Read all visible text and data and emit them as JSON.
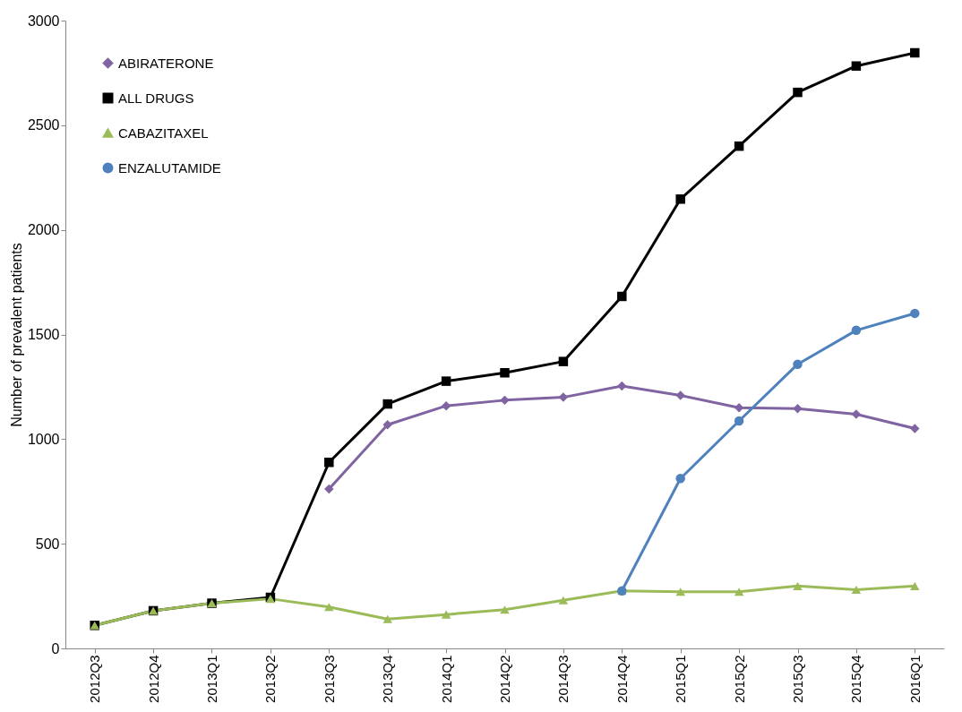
{
  "chart_data": {
    "type": "line",
    "ylabel": "Number of prevalent patients",
    "categories": [
      "2012Q3",
      "2012Q4",
      "2013Q1",
      "2013Q2",
      "2013Q3",
      "2013Q4",
      "2014Q1",
      "2014Q2",
      "2014Q3",
      "2014Q4",
      "2015Q1",
      "2015Q2",
      "2015Q3",
      "2015Q4",
      "2016Q1"
    ],
    "series": [
      {
        "name": "ABIRATERONE",
        "color": "#8064a2",
        "marker": "diamond",
        "values": [
          null,
          null,
          null,
          null,
          762,
          1069,
          1159,
          1186,
          1200,
          1254,
          1209,
          1150,
          1146,
          1119,
          1051
        ]
      },
      {
        "name": "ALL DRUGS",
        "color": "#000000",
        "marker": "square",
        "values": [
          110,
          180,
          216,
          244,
          889,
          1168,
          1277,
          1317,
          1371,
          1682,
          2147,
          2400,
          2657,
          2783,
          2846
        ]
      },
      {
        "name": "CABAZITAXEL",
        "color": "#9bbb59",
        "marker": "triangle",
        "values": [
          110,
          180,
          216,
          237,
          198,
          140,
          162,
          185,
          230,
          275,
          271,
          271,
          298,
          280,
          298
        ]
      },
      {
        "name": "ENZALUTAMIDE",
        "color": "#4f81bd",
        "marker": "circle",
        "values": [
          null,
          null,
          null,
          null,
          null,
          null,
          null,
          null,
          null,
          275,
          812,
          1087,
          1358,
          1520,
          1601
        ]
      }
    ],
    "ylim": [
      0,
      3000
    ],
    "yticks": [
      0,
      500,
      1000,
      1500,
      2000,
      2500,
      3000
    ],
    "grid": false,
    "legend": "top left"
  }
}
